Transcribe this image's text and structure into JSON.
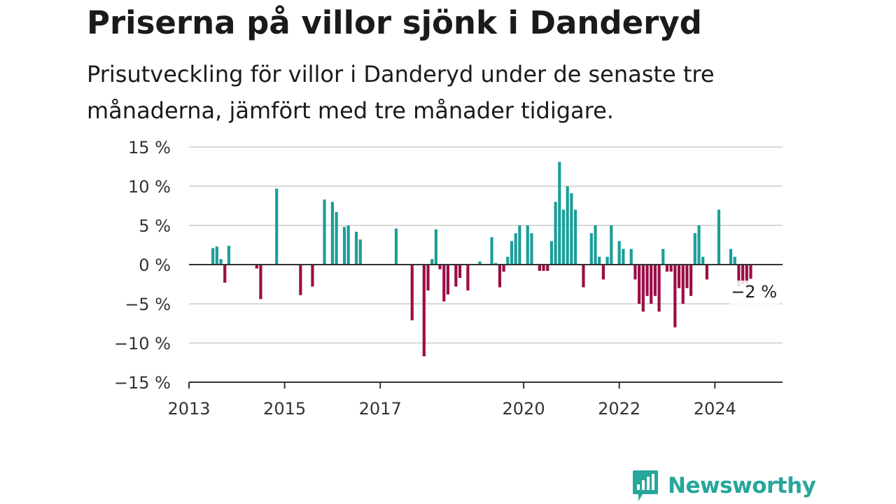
{
  "header": {
    "title": "Priserna på villor sjönk i Danderyd",
    "subtitle": "Prisutveckling för villor i Danderyd under de senaste tre månaderna, jämfört med tre månader tidigare."
  },
  "brand": {
    "name": "Newsworthy",
    "icon": "newsworthy-logo-icon",
    "color": "#27a69b"
  },
  "colors": {
    "positive": "#1c9e98",
    "negative": "#9b0e47",
    "grid": "#d9d9d9",
    "axis": "#333333"
  },
  "chart_data": {
    "type": "bar",
    "title": "Priserna på villor sjönk i Danderyd",
    "xlabel": "",
    "ylabel": "",
    "ylim": [
      -15,
      15
    ],
    "yticks": [
      15,
      10,
      5,
      0,
      -5,
      -10,
      -15
    ],
    "ytick_labels": [
      "15 %",
      "10 %",
      "5 %",
      "0 %",
      "−5 %",
      "−10 %",
      "−15 %"
    ],
    "xlim": [
      "2013-01",
      "2025-06"
    ],
    "xticks": [
      "2013-01",
      "2015-01",
      "2017-01",
      "2020-01",
      "2022-01",
      "2024-01"
    ],
    "xtick_labels": [
      "2013",
      "2015",
      "2017",
      "2020",
      "2022",
      "2024"
    ],
    "grid": true,
    "annotation": {
      "label": "−2 %",
      "x": "2024-12",
      "y": -2
    },
    "points": [
      {
        "x": "2013-07",
        "y": 2.1
      },
      {
        "x": "2013-08",
        "y": 2.3
      },
      {
        "x": "2013-09",
        "y": 0.7
      },
      {
        "x": "2013-10",
        "y": -2.3
      },
      {
        "x": "2013-11",
        "y": 2.4
      },
      {
        "x": "2014-06",
        "y": -0.5
      },
      {
        "x": "2014-07",
        "y": -4.4
      },
      {
        "x": "2014-11",
        "y": 9.7
      },
      {
        "x": "2015-05",
        "y": -3.9
      },
      {
        "x": "2015-08",
        "y": -2.8
      },
      {
        "x": "2015-11",
        "y": 8.3
      },
      {
        "x": "2016-01",
        "y": 8.0
      },
      {
        "x": "2016-02",
        "y": 6.7
      },
      {
        "x": "2016-04",
        "y": 4.8
      },
      {
        "x": "2016-05",
        "y": 5.0
      },
      {
        "x": "2016-07",
        "y": 4.2
      },
      {
        "x": "2016-08",
        "y": 3.2
      },
      {
        "x": "2017-05",
        "y": 4.6
      },
      {
        "x": "2017-09",
        "y": -7.1
      },
      {
        "x": "2017-12",
        "y": -11.7
      },
      {
        "x": "2018-01",
        "y": -3.3
      },
      {
        "x": "2018-02",
        "y": 0.7
      },
      {
        "x": "2018-03",
        "y": 4.5
      },
      {
        "x": "2018-04",
        "y": -0.6
      },
      {
        "x": "2018-05",
        "y": -4.7
      },
      {
        "x": "2018-06",
        "y": -3.8
      },
      {
        "x": "2018-08",
        "y": -2.8
      },
      {
        "x": "2018-09",
        "y": -1.7
      },
      {
        "x": "2018-11",
        "y": -3.3
      },
      {
        "x": "2019-02",
        "y": 0.4
      },
      {
        "x": "2019-05",
        "y": 3.5
      },
      {
        "x": "2019-06",
        "y": 0.2
      },
      {
        "x": "2019-07",
        "y": -2.9
      },
      {
        "x": "2019-08",
        "y": -0.9
      },
      {
        "x": "2019-09",
        "y": 1.0
      },
      {
        "x": "2019-10",
        "y": 3.0
      },
      {
        "x": "2019-11",
        "y": 4.0
      },
      {
        "x": "2019-12",
        "y": 5.0
      },
      {
        "x": "2020-02",
        "y": 5.0
      },
      {
        "x": "2020-03",
        "y": 4.0
      },
      {
        "x": "2020-05",
        "y": -0.8
      },
      {
        "x": "2020-06",
        "y": -0.8
      },
      {
        "x": "2020-07",
        "y": -0.8
      },
      {
        "x": "2020-08",
        "y": 3.0
      },
      {
        "x": "2020-09",
        "y": 8.0
      },
      {
        "x": "2020-10",
        "y": 13.1
      },
      {
        "x": "2020-11",
        "y": 7.0
      },
      {
        "x": "2020-12",
        "y": 10.0
      },
      {
        "x": "2021-01",
        "y": 9.1
      },
      {
        "x": "2021-02",
        "y": 7.0
      },
      {
        "x": "2021-04",
        "y": -2.9
      },
      {
        "x": "2021-06",
        "y": 4.0
      },
      {
        "x": "2021-07",
        "y": 5.0
      },
      {
        "x": "2021-08",
        "y": 1.0
      },
      {
        "x": "2021-09",
        "y": -1.9
      },
      {
        "x": "2021-10",
        "y": 1.0
      },
      {
        "x": "2021-11",
        "y": 5.0
      },
      {
        "x": "2022-01",
        "y": 3.0
      },
      {
        "x": "2022-02",
        "y": 2.0
      },
      {
        "x": "2022-04",
        "y": 2.0
      },
      {
        "x": "2022-05",
        "y": -1.9
      },
      {
        "x": "2022-06",
        "y": -5.0
      },
      {
        "x": "2022-07",
        "y": -6.0
      },
      {
        "x": "2022-08",
        "y": -4.0
      },
      {
        "x": "2022-09",
        "y": -5.0
      },
      {
        "x": "2022-10",
        "y": -4.0
      },
      {
        "x": "2022-11",
        "y": -6.0
      },
      {
        "x": "2022-12",
        "y": 2.0
      },
      {
        "x": "2023-01",
        "y": -0.9
      },
      {
        "x": "2023-02",
        "y": -0.9
      },
      {
        "x": "2023-03",
        "y": -8.0
      },
      {
        "x": "2023-04",
        "y": -3.0
      },
      {
        "x": "2023-05",
        "y": -5.0
      },
      {
        "x": "2023-06",
        "y": -3.0
      },
      {
        "x": "2023-07",
        "y": -4.0
      },
      {
        "x": "2023-08",
        "y": 4.0
      },
      {
        "x": "2023-09",
        "y": 5.0
      },
      {
        "x": "2023-10",
        "y": 1.0
      },
      {
        "x": "2023-11",
        "y": -1.9
      },
      {
        "x": "2024-02",
        "y": 7.0
      },
      {
        "x": "2024-05",
        "y": 2.0
      },
      {
        "x": "2024-06",
        "y": 1.0
      },
      {
        "x": "2024-07",
        "y": -2.8
      },
      {
        "x": "2024-08",
        "y": -2.5
      },
      {
        "x": "2024-09",
        "y": -2.4
      },
      {
        "x": "2024-10",
        "y": -1.8
      }
    ]
  }
}
